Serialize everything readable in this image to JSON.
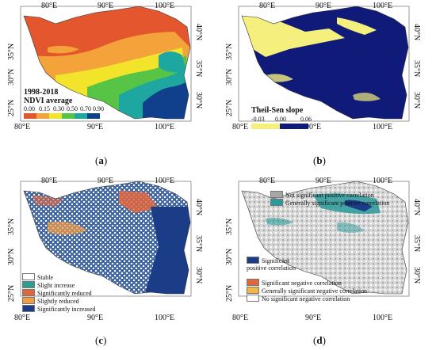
{
  "coords": {
    "lon_labels": [
      "80°E",
      "90°E",
      "100°E"
    ],
    "lat_left_a": [
      "35°N",
      "30°N",
      "25°N"
    ],
    "lat_right_a": [
      "40°N",
      "35°N",
      "30°N"
    ]
  },
  "panels": {
    "a": {
      "caption": "a",
      "legend_title_1": "1998-2018",
      "legend_title_2": "NDVI average",
      "ticks": [
        "0.00",
        "0.15",
        "0.30",
        "0.50",
        "0.70",
        "0.90"
      ],
      "colors": [
        "#e4572e",
        "#f4a23a",
        "#f2e42a",
        "#58c446",
        "#1ea6a0",
        "#103f8c"
      ]
    },
    "b": {
      "caption": "b",
      "legend_title": "Theil-Sen slope",
      "ticks": [
        "-0.03",
        "0.00",
        "0.06"
      ],
      "colors": [
        "#f5f07e",
        "#101a78"
      ]
    },
    "c": {
      "caption": "c",
      "items": [
        {
          "label": "Stable",
          "color": "#ffffff"
        },
        {
          "label": "Slight increase",
          "color": "#2e9e8c"
        },
        {
          "label": "Significantly reduced",
          "color": "#e0663f"
        },
        {
          "label": "Slightly reduced",
          "color": "#f39c42"
        },
        {
          "label": "Significantly increased",
          "color": "#1b3c86"
        }
      ]
    },
    "d": {
      "caption": "d",
      "top_items": [
        {
          "label": "Not significant positive correlation",
          "color": "#a7a7a7"
        },
        {
          "label": "Generally significant positive correlation",
          "color": "#2a9a9a"
        }
      ],
      "bottom_items": [
        {
          "label": "Significant positive correlation",
          "color": "#1b3c86"
        },
        {
          "label": "Significant negative correlation",
          "color": "#e0663f"
        },
        {
          "label": "Generally significant negative correlation",
          "color": "#f5b545"
        },
        {
          "label": "No significant negative correlation",
          "color": "#ffffff"
        }
      ]
    }
  }
}
